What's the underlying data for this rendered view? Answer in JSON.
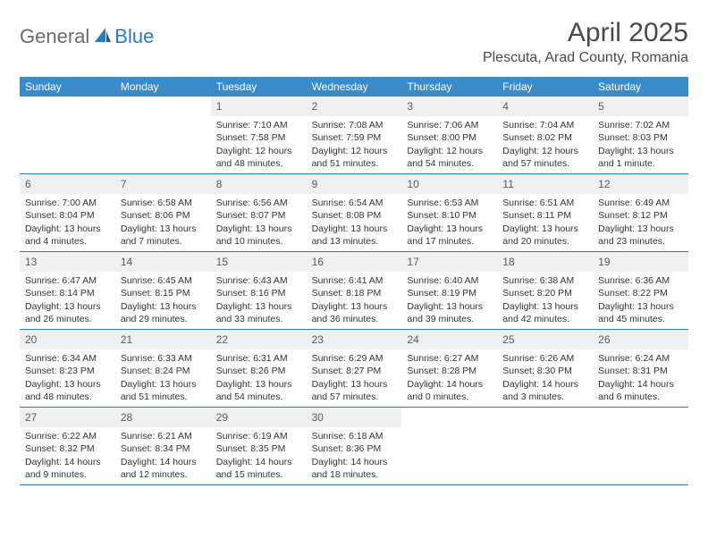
{
  "brand": {
    "name_a": "General",
    "name_b": "Blue",
    "text_color": "#6b6b6b",
    "accent_color": "#2b7bbf"
  },
  "title": "April 2025",
  "location": "Plescuta, Arad County, Romania",
  "header_bg": "#3b8bc9",
  "header_fg": "#ffffff",
  "daynum_bg": "#eef0f1",
  "border_color": "#2b7bbf",
  "weekdays": [
    "Sunday",
    "Monday",
    "Tuesday",
    "Wednesday",
    "Thursday",
    "Friday",
    "Saturday"
  ],
  "weeks": [
    [
      {
        "n": "",
        "sr": "",
        "ss": "",
        "dl": ""
      },
      {
        "n": "",
        "sr": "",
        "ss": "",
        "dl": ""
      },
      {
        "n": "1",
        "sr": "Sunrise: 7:10 AM",
        "ss": "Sunset: 7:58 PM",
        "dl": "Daylight: 12 hours and 48 minutes."
      },
      {
        "n": "2",
        "sr": "Sunrise: 7:08 AM",
        "ss": "Sunset: 7:59 PM",
        "dl": "Daylight: 12 hours and 51 minutes."
      },
      {
        "n": "3",
        "sr": "Sunrise: 7:06 AM",
        "ss": "Sunset: 8:00 PM",
        "dl": "Daylight: 12 hours and 54 minutes."
      },
      {
        "n": "4",
        "sr": "Sunrise: 7:04 AM",
        "ss": "Sunset: 8:02 PM",
        "dl": "Daylight: 12 hours and 57 minutes."
      },
      {
        "n": "5",
        "sr": "Sunrise: 7:02 AM",
        "ss": "Sunset: 8:03 PM",
        "dl": "Daylight: 13 hours and 1 minute."
      }
    ],
    [
      {
        "n": "6",
        "sr": "Sunrise: 7:00 AM",
        "ss": "Sunset: 8:04 PM",
        "dl": "Daylight: 13 hours and 4 minutes."
      },
      {
        "n": "7",
        "sr": "Sunrise: 6:58 AM",
        "ss": "Sunset: 8:06 PM",
        "dl": "Daylight: 13 hours and 7 minutes."
      },
      {
        "n": "8",
        "sr": "Sunrise: 6:56 AM",
        "ss": "Sunset: 8:07 PM",
        "dl": "Daylight: 13 hours and 10 minutes."
      },
      {
        "n": "9",
        "sr": "Sunrise: 6:54 AM",
        "ss": "Sunset: 8:08 PM",
        "dl": "Daylight: 13 hours and 13 minutes."
      },
      {
        "n": "10",
        "sr": "Sunrise: 6:53 AM",
        "ss": "Sunset: 8:10 PM",
        "dl": "Daylight: 13 hours and 17 minutes."
      },
      {
        "n": "11",
        "sr": "Sunrise: 6:51 AM",
        "ss": "Sunset: 8:11 PM",
        "dl": "Daylight: 13 hours and 20 minutes."
      },
      {
        "n": "12",
        "sr": "Sunrise: 6:49 AM",
        "ss": "Sunset: 8:12 PM",
        "dl": "Daylight: 13 hours and 23 minutes."
      }
    ],
    [
      {
        "n": "13",
        "sr": "Sunrise: 6:47 AM",
        "ss": "Sunset: 8:14 PM",
        "dl": "Daylight: 13 hours and 26 minutes."
      },
      {
        "n": "14",
        "sr": "Sunrise: 6:45 AM",
        "ss": "Sunset: 8:15 PM",
        "dl": "Daylight: 13 hours and 29 minutes."
      },
      {
        "n": "15",
        "sr": "Sunrise: 6:43 AM",
        "ss": "Sunset: 8:16 PM",
        "dl": "Daylight: 13 hours and 33 minutes."
      },
      {
        "n": "16",
        "sr": "Sunrise: 6:41 AM",
        "ss": "Sunset: 8:18 PM",
        "dl": "Daylight: 13 hours and 36 minutes."
      },
      {
        "n": "17",
        "sr": "Sunrise: 6:40 AM",
        "ss": "Sunset: 8:19 PM",
        "dl": "Daylight: 13 hours and 39 minutes."
      },
      {
        "n": "18",
        "sr": "Sunrise: 6:38 AM",
        "ss": "Sunset: 8:20 PM",
        "dl": "Daylight: 13 hours and 42 minutes."
      },
      {
        "n": "19",
        "sr": "Sunrise: 6:36 AM",
        "ss": "Sunset: 8:22 PM",
        "dl": "Daylight: 13 hours and 45 minutes."
      }
    ],
    [
      {
        "n": "20",
        "sr": "Sunrise: 6:34 AM",
        "ss": "Sunset: 8:23 PM",
        "dl": "Daylight: 13 hours and 48 minutes."
      },
      {
        "n": "21",
        "sr": "Sunrise: 6:33 AM",
        "ss": "Sunset: 8:24 PM",
        "dl": "Daylight: 13 hours and 51 minutes."
      },
      {
        "n": "22",
        "sr": "Sunrise: 6:31 AM",
        "ss": "Sunset: 8:26 PM",
        "dl": "Daylight: 13 hours and 54 minutes."
      },
      {
        "n": "23",
        "sr": "Sunrise: 6:29 AM",
        "ss": "Sunset: 8:27 PM",
        "dl": "Daylight: 13 hours and 57 minutes."
      },
      {
        "n": "24",
        "sr": "Sunrise: 6:27 AM",
        "ss": "Sunset: 8:28 PM",
        "dl": "Daylight: 14 hours and 0 minutes."
      },
      {
        "n": "25",
        "sr": "Sunrise: 6:26 AM",
        "ss": "Sunset: 8:30 PM",
        "dl": "Daylight: 14 hours and 3 minutes."
      },
      {
        "n": "26",
        "sr": "Sunrise: 6:24 AM",
        "ss": "Sunset: 8:31 PM",
        "dl": "Daylight: 14 hours and 6 minutes."
      }
    ],
    [
      {
        "n": "27",
        "sr": "Sunrise: 6:22 AM",
        "ss": "Sunset: 8:32 PM",
        "dl": "Daylight: 14 hours and 9 minutes."
      },
      {
        "n": "28",
        "sr": "Sunrise: 6:21 AM",
        "ss": "Sunset: 8:34 PM",
        "dl": "Daylight: 14 hours and 12 minutes."
      },
      {
        "n": "29",
        "sr": "Sunrise: 6:19 AM",
        "ss": "Sunset: 8:35 PM",
        "dl": "Daylight: 14 hours and 15 minutes."
      },
      {
        "n": "30",
        "sr": "Sunrise: 6:18 AM",
        "ss": "Sunset: 8:36 PM",
        "dl": "Daylight: 14 hours and 18 minutes."
      },
      {
        "n": "",
        "sr": "",
        "ss": "",
        "dl": ""
      },
      {
        "n": "",
        "sr": "",
        "ss": "",
        "dl": ""
      },
      {
        "n": "",
        "sr": "",
        "ss": "",
        "dl": ""
      }
    ]
  ]
}
